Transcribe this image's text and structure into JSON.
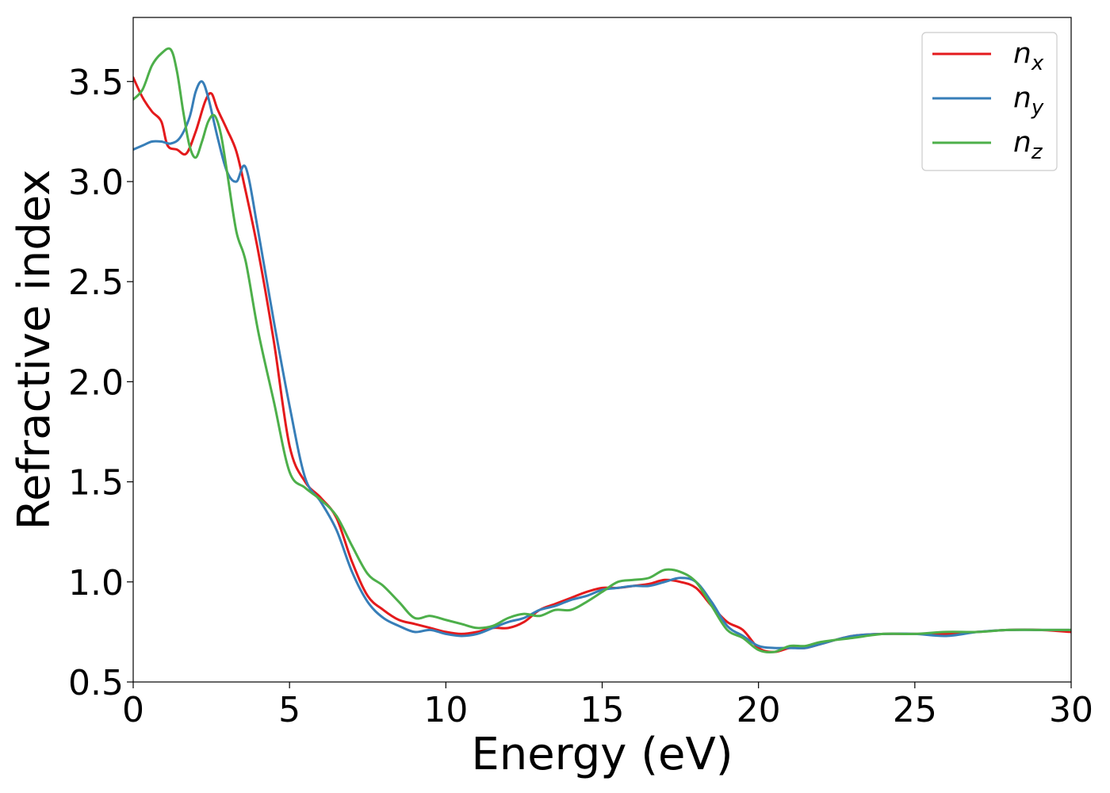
{
  "chart_data": {
    "type": "line",
    "xlabel": "Energy (eV)",
    "ylabel": "Refractive index",
    "xlim": [
      0,
      30
    ],
    "ylim": [
      0.5,
      3.82
    ],
    "xticks": [
      0,
      5,
      10,
      15,
      20,
      25,
      30
    ],
    "xtick_labels": [
      "0",
      "5",
      "10",
      "15",
      "20",
      "25",
      "30"
    ],
    "yticks": [
      0.5,
      1.0,
      1.5,
      2.0,
      2.5,
      3.0,
      3.5
    ],
    "ytick_labels": [
      "0.5",
      "1.0",
      "1.5",
      "2.0",
      "2.5",
      "3.0",
      "3.5"
    ],
    "grid": false,
    "legend_position": "top-right",
    "series": [
      {
        "name": "n",
        "subscript": "x",
        "color": "#e41a1c",
        "x": [
          0,
          0.3,
          0.6,
          0.9,
          1.1,
          1.4,
          1.7,
          2.0,
          2.3,
          2.5,
          2.7,
          3.0,
          3.3,
          3.6,
          4.0,
          4.5,
          5.0,
          5.5,
          6.0,
          6.5,
          7.0,
          7.5,
          8.0,
          8.5,
          9.0,
          9.5,
          10.0,
          10.5,
          11.0,
          11.5,
          12.0,
          12.5,
          13.0,
          13.5,
          14.0,
          14.5,
          15.0,
          15.5,
          16.0,
          16.5,
          17.0,
          17.5,
          18.0,
          18.5,
          19.0,
          19.5,
          20.0,
          20.5,
          21.0,
          21.5,
          22.0,
          23.0,
          24.0,
          25.0,
          26.0,
          27.0,
          28.0,
          29.0,
          30.0
        ],
        "y": [
          3.52,
          3.42,
          3.35,
          3.3,
          3.18,
          3.16,
          3.14,
          3.25,
          3.4,
          3.44,
          3.36,
          3.26,
          3.15,
          2.95,
          2.65,
          2.2,
          1.68,
          1.5,
          1.42,
          1.32,
          1.1,
          0.93,
          0.86,
          0.81,
          0.79,
          0.77,
          0.75,
          0.74,
          0.75,
          0.77,
          0.77,
          0.8,
          0.86,
          0.89,
          0.92,
          0.95,
          0.97,
          0.97,
          0.98,
          0.99,
          1.01,
          1.0,
          0.97,
          0.88,
          0.8,
          0.76,
          0.67,
          0.65,
          0.67,
          0.67,
          0.69,
          0.73,
          0.74,
          0.74,
          0.74,
          0.75,
          0.76,
          0.76,
          0.75
        ]
      },
      {
        "name": "n",
        "subscript": "y",
        "color": "#377eb8",
        "x": [
          0,
          0.3,
          0.6,
          0.9,
          1.2,
          1.5,
          1.8,
          2.0,
          2.2,
          2.4,
          2.7,
          3.0,
          3.3,
          3.6,
          4.0,
          4.5,
          5.0,
          5.5,
          6.0,
          6.5,
          7.0,
          7.5,
          8.0,
          8.5,
          9.0,
          9.5,
          10.0,
          10.5,
          11.0,
          11.5,
          12.0,
          12.5,
          13.0,
          13.5,
          14.0,
          14.5,
          15.0,
          15.5,
          16.0,
          16.5,
          17.0,
          17.5,
          18.0,
          18.5,
          19.0,
          19.5,
          20.0,
          20.5,
          21.0,
          21.5,
          22.0,
          23.0,
          24.0,
          25.0,
          26.0,
          27.0,
          28.0,
          29.0,
          30.0
        ],
        "y": [
          3.16,
          3.18,
          3.2,
          3.2,
          3.19,
          3.22,
          3.32,
          3.45,
          3.5,
          3.42,
          3.22,
          3.05,
          3.0,
          3.07,
          2.75,
          2.3,
          1.88,
          1.52,
          1.4,
          1.26,
          1.05,
          0.9,
          0.82,
          0.78,
          0.75,
          0.76,
          0.74,
          0.73,
          0.74,
          0.77,
          0.8,
          0.82,
          0.86,
          0.88,
          0.91,
          0.93,
          0.96,
          0.97,
          0.98,
          0.98,
          1.0,
          1.02,
          1.0,
          0.9,
          0.78,
          0.73,
          0.68,
          0.67,
          0.67,
          0.67,
          0.69,
          0.73,
          0.74,
          0.74,
          0.73,
          0.75,
          0.76,
          0.76,
          0.76
        ]
      },
      {
        "name": "n",
        "subscript": "z",
        "color": "#4daf4a",
        "x": [
          0,
          0.3,
          0.6,
          0.9,
          1.2,
          1.4,
          1.6,
          1.8,
          2.0,
          2.2,
          2.4,
          2.6,
          2.8,
          3.0,
          3.3,
          3.6,
          4.0,
          4.5,
          5.0,
          5.5,
          6.0,
          6.5,
          7.0,
          7.5,
          8.0,
          8.5,
          9.0,
          9.5,
          10.0,
          10.5,
          11.0,
          11.5,
          12.0,
          12.5,
          13.0,
          13.5,
          14.0,
          14.5,
          15.0,
          15.5,
          16.0,
          16.5,
          17.0,
          17.5,
          18.0,
          18.5,
          19.0,
          19.5,
          20.0,
          20.5,
          21.0,
          21.5,
          22.0,
          23.0,
          24.0,
          25.0,
          26.0,
          27.0,
          28.0,
          29.0,
          30.0
        ],
        "y": [
          3.41,
          3.46,
          3.58,
          3.64,
          3.66,
          3.55,
          3.35,
          3.18,
          3.12,
          3.2,
          3.3,
          3.33,
          3.24,
          3.05,
          2.75,
          2.6,
          2.25,
          1.9,
          1.55,
          1.47,
          1.41,
          1.33,
          1.18,
          1.04,
          0.98,
          0.9,
          0.82,
          0.83,
          0.81,
          0.79,
          0.77,
          0.78,
          0.82,
          0.84,
          0.83,
          0.86,
          0.86,
          0.9,
          0.95,
          1.0,
          1.01,
          1.02,
          1.06,
          1.05,
          1.0,
          0.88,
          0.76,
          0.72,
          0.66,
          0.65,
          0.68,
          0.68,
          0.7,
          0.72,
          0.74,
          0.74,
          0.75,
          0.75,
          0.76,
          0.76,
          0.76
        ]
      }
    ]
  }
}
